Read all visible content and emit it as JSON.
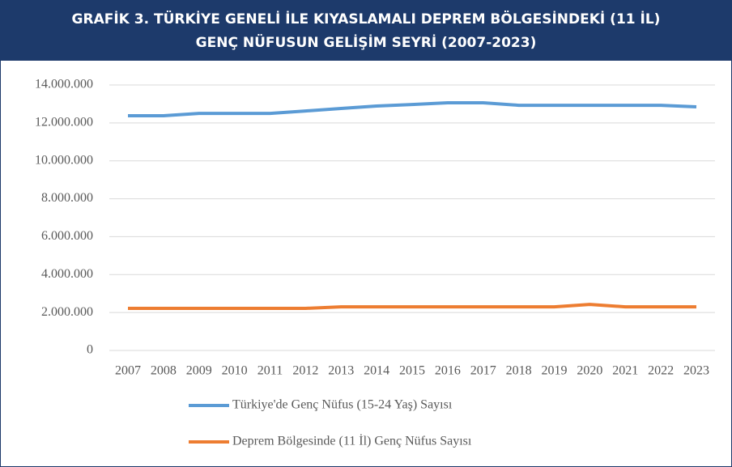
{
  "chart_data": {
    "type": "line",
    "title": [
      "GRAFİK 3. TÜRKİYE GENELİ İLE KIYASLAMALI DEPREM BÖLGESİNDEKİ (11 İL)",
      "GENÇ NÜFUSUN GELİŞİM SEYRİ (2007-2023)"
    ],
    "categories": [
      "2007",
      "2008",
      "2009",
      "2010",
      "2011",
      "2012",
      "2013",
      "2014",
      "2015",
      "2016",
      "2017",
      "2018",
      "2019",
      "2020",
      "2021",
      "2022",
      "2023"
    ],
    "series": [
      {
        "name": "Türkiye'de Genç Nüfus (15-24 Yaş) Sayısı",
        "color": "#5b9bd5",
        "values": [
          12380000,
          12380000,
          12500000,
          12500000,
          12500000,
          12630000,
          12760000,
          12890000,
          12970000,
          13060000,
          13060000,
          12930000,
          12930000,
          12930000,
          12930000,
          12930000,
          12850000
        ]
      },
      {
        "name": "Deprem Bölgesinde (11 İl) Genç Nüfus Sayısı",
        "color": "#ed7d31",
        "values": [
          2220000,
          2220000,
          2220000,
          2220000,
          2220000,
          2220000,
          2300000,
          2300000,
          2300000,
          2300000,
          2300000,
          2300000,
          2300000,
          2430000,
          2300000,
          2300000,
          2300000
        ]
      }
    ],
    "ylim": [
      0,
      14000000
    ],
    "yticks": [
      0,
      {
        "value": 2000000,
        "label": "2.000.000"
      },
      {
        "value": 4000000,
        "label": "4.000.000"
      },
      {
        "value": 6000000,
        "label": "6.000.000"
      },
      {
        "value": 8000000,
        "label": "8.000.000"
      },
      {
        "value": 10000000,
        "label": "10.000.000"
      },
      {
        "value": 12000000,
        "label": "12.000.000"
      },
      {
        "value": 14000000,
        "label": "14.000.000"
      }
    ],
    "grid": true,
    "legend": "bottom"
  }
}
